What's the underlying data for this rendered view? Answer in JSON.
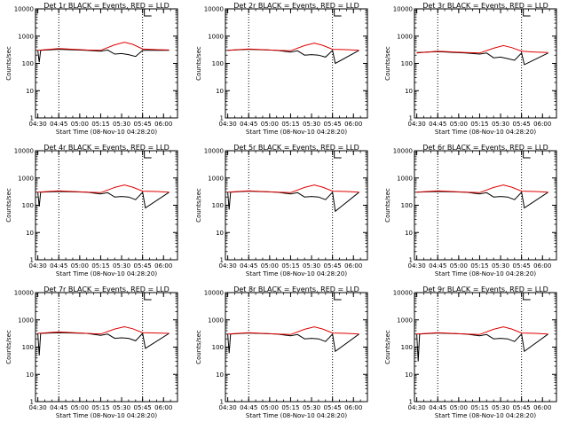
{
  "chart_data": [
    {
      "type": "line",
      "title": "Det 1r BLACK = Events, RED = LLD",
      "xlabel": "Start Time (08-Nov-10 04:28:20)",
      "ylabel": "Counts/sec",
      "ylim": [
        1,
        10000
      ],
      "y_scale": "log",
      "x_tick_labels": [
        "04:30",
        "04:45",
        "05:00",
        "05:15",
        "05:30",
        "05:45",
        "06:00"
      ],
      "y_tick_labels": [
        "1",
        "10",
        "100",
        "1000",
        "10000"
      ],
      "vertical_dotted_lines": [
        "04:45",
        "05:45"
      ],
      "series": [
        {
          "color": "#000000",
          "x": [
            "04:30",
            "04:31",
            "04:32",
            "04:45",
            "05:05",
            "05:15",
            "05:20",
            "05:25",
            "05:30",
            "05:35",
            "05:40",
            "05:45",
            "05:46",
            "06:04"
          ],
          "values": [
            300,
            110,
            300,
            330,
            300,
            280,
            310,
            220,
            230,
            210,
            180,
            300,
            300,
            300
          ]
        },
        {
          "color": "#e00000",
          "x": [
            "04:30",
            "04:45",
            "05:05",
            "05:15",
            "05:25",
            "05:32",
            "05:38",
            "05:45",
            "05:55",
            "06:04"
          ],
          "values": [
            300,
            350,
            310,
            300,
            480,
            600,
            500,
            340,
            320,
            310
          ]
        }
      ]
    },
    {
      "type": "line",
      "title": "Det 2r BLACK = Events, RED = LLD",
      "xlabel": "Start Time (08-Nov-10 04:28:20)",
      "ylabel": "Counts/sec",
      "ylim": [
        1,
        10000
      ],
      "y_scale": "log",
      "x_tick_labels": [
        "04:30",
        "04:45",
        "05:00",
        "05:15",
        "05:30",
        "05:45",
        "06:00"
      ],
      "y_tick_labels": [
        "1",
        "10",
        "100",
        "1000",
        "10000"
      ],
      "vertical_dotted_lines": [
        "04:45",
        "05:45"
      ],
      "series": [
        {
          "color": "#000000",
          "x": [
            "04:30",
            "04:45",
            "05:05",
            "05:15",
            "05:20",
            "05:25",
            "05:30",
            "05:35",
            "05:40",
            "05:45",
            "05:47",
            "06:04"
          ],
          "values": [
            300,
            330,
            300,
            260,
            290,
            200,
            210,
            200,
            170,
            300,
            100,
            300
          ]
        },
        {
          "color": "#e00000",
          "x": [
            "04:30",
            "04:45",
            "05:05",
            "05:15",
            "05:25",
            "05:32",
            "05:38",
            "05:45",
            "05:55",
            "06:04"
          ],
          "values": [
            300,
            340,
            300,
            290,
            450,
            550,
            460,
            330,
            320,
            300
          ]
        }
      ]
    },
    {
      "type": "line",
      "title": "Det 3r BLACK = Events, RED = LLD",
      "xlabel": "Start Time (08-Nov-10 04:28:20)",
      "ylabel": "Counts/sec",
      "ylim": [
        1,
        10000
      ],
      "y_scale": "log",
      "x_tick_labels": [
        "04:30",
        "04:45",
        "05:00",
        "05:15",
        "05:30",
        "05:45",
        "06:00"
      ],
      "y_tick_labels": [
        "1",
        "10",
        "100",
        "1000",
        "10000"
      ],
      "vertical_dotted_lines": [
        "04:45",
        "05:45"
      ],
      "series": [
        {
          "color": "#000000",
          "x": [
            "04:30",
            "04:45",
            "05:05",
            "05:15",
            "05:20",
            "05:25",
            "05:30",
            "05:35",
            "05:40",
            "05:45",
            "05:47",
            "06:04"
          ],
          "values": [
            250,
            270,
            240,
            220,
            240,
            160,
            170,
            150,
            130,
            240,
            90,
            240
          ]
        },
        {
          "color": "#e00000",
          "x": [
            "04:30",
            "04:45",
            "05:05",
            "05:15",
            "05:25",
            "05:32",
            "05:38",
            "05:45",
            "05:55",
            "06:04"
          ],
          "values": [
            240,
            280,
            250,
            240,
            360,
            450,
            380,
            280,
            260,
            250
          ]
        }
      ]
    },
    {
      "type": "line",
      "title": "Det 4r BLACK = Events, RED = LLD",
      "xlabel": "Start Time (08-Nov-10 04:28:20)",
      "ylabel": "Counts/sec",
      "ylim": [
        1,
        10000
      ],
      "y_scale": "log",
      "x_tick_labels": [
        "04:30",
        "04:45",
        "05:00",
        "05:15",
        "05:30",
        "05:45",
        "06:00"
      ],
      "y_tick_labels": [
        "1",
        "10",
        "100",
        "1000",
        "10000"
      ],
      "vertical_dotted_lines": [
        "04:45",
        "05:45"
      ],
      "series": [
        {
          "color": "#000000",
          "x": [
            "04:30",
            "04:31",
            "04:32",
            "04:45",
            "05:05",
            "05:15",
            "05:20",
            "05:25",
            "05:30",
            "05:35",
            "05:40",
            "05:45",
            "05:47",
            "06:04"
          ],
          "values": [
            300,
            90,
            300,
            320,
            300,
            260,
            290,
            200,
            210,
            200,
            160,
            300,
            80,
            300
          ]
        },
        {
          "color": "#e00000",
          "x": [
            "04:30",
            "04:45",
            "05:05",
            "05:15",
            "05:25",
            "05:32",
            "05:38",
            "05:45",
            "05:55",
            "06:04"
          ],
          "values": [
            300,
            340,
            300,
            290,
            450,
            550,
            460,
            330,
            320,
            300
          ]
        }
      ]
    },
    {
      "type": "line",
      "title": "Det 5r BLACK = Events, RED = LLD",
      "xlabel": "Start Time (08-Nov-10 04:28:20)",
      "ylabel": "Counts/sec",
      "ylim": [
        1,
        10000
      ],
      "y_scale": "log",
      "x_tick_labels": [
        "04:30",
        "04:45",
        "05:00",
        "05:15",
        "05:30",
        "05:45",
        "06:00"
      ],
      "y_tick_labels": [
        "1",
        "10",
        "100",
        "1000",
        "10000"
      ],
      "vertical_dotted_lines": [
        "04:45",
        "05:45"
      ],
      "series": [
        {
          "color": "#000000",
          "x": [
            "04:30",
            "04:31",
            "04:32",
            "04:45",
            "05:05",
            "05:15",
            "05:20",
            "05:25",
            "05:30",
            "05:35",
            "05:40",
            "05:45",
            "05:47",
            "06:04"
          ],
          "values": [
            300,
            70,
            300,
            330,
            300,
            260,
            290,
            200,
            210,
            200,
            160,
            300,
            60,
            300
          ]
        },
        {
          "color": "#e00000",
          "x": [
            "04:30",
            "04:45",
            "05:05",
            "05:15",
            "05:25",
            "05:32",
            "05:38",
            "05:45",
            "05:55",
            "06:04"
          ],
          "values": [
            300,
            340,
            300,
            290,
            450,
            550,
            460,
            330,
            320,
            300
          ]
        }
      ]
    },
    {
      "type": "line",
      "title": "Det 6r BLACK = Events, RED = LLD",
      "xlabel": "Start Time (08-Nov-10 04:28:20)",
      "ylabel": "Counts/sec",
      "ylim": [
        1,
        10000
      ],
      "y_scale": "log",
      "x_tick_labels": [
        "04:30",
        "04:45",
        "05:00",
        "05:15",
        "05:30",
        "05:45",
        "06:00"
      ],
      "y_tick_labels": [
        "1",
        "10",
        "100",
        "1000",
        "10000"
      ],
      "vertical_dotted_lines": [
        "04:45",
        "05:45"
      ],
      "series": [
        {
          "color": "#000000",
          "x": [
            "04:30",
            "04:45",
            "05:05",
            "05:15",
            "05:20",
            "05:25",
            "05:30",
            "05:35",
            "05:40",
            "05:45",
            "05:47",
            "06:04"
          ],
          "values": [
            300,
            320,
            300,
            260,
            290,
            200,
            210,
            200,
            160,
            300,
            80,
            300
          ]
        },
        {
          "color": "#e00000",
          "x": [
            "04:30",
            "04:45",
            "05:05",
            "05:15",
            "05:25",
            "05:32",
            "05:38",
            "05:45",
            "05:55",
            "06:04"
          ],
          "values": [
            300,
            340,
            300,
            290,
            450,
            550,
            460,
            330,
            320,
            300
          ]
        }
      ]
    },
    {
      "type": "line",
      "title": "Det 7r BLACK = Events, RED = LLD",
      "xlabel": "Start Time (08-Nov-10 04:28:20)",
      "ylabel": "Counts/sec",
      "ylim": [
        1,
        10000
      ],
      "y_scale": "log",
      "x_tick_labels": [
        "04:30",
        "04:45",
        "05:00",
        "05:15",
        "05:30",
        "05:45",
        "06:00"
      ],
      "y_tick_labels": [
        "1",
        "10",
        "100",
        "1000",
        "10000"
      ],
      "vertical_dotted_lines": [
        "04:45",
        "05:45"
      ],
      "series": [
        {
          "color": "#000000",
          "x": [
            "04:30",
            "04:31",
            "04:32",
            "04:45",
            "05:05",
            "05:15",
            "05:20",
            "05:25",
            "05:30",
            "05:35",
            "05:40",
            "05:45",
            "05:47",
            "06:04"
          ],
          "values": [
            320,
            50,
            320,
            340,
            320,
            270,
            300,
            210,
            220,
            210,
            170,
            320,
            90,
            320
          ]
        },
        {
          "color": "#e00000",
          "x": [
            "04:30",
            "04:45",
            "05:05",
            "05:15",
            "05:25",
            "05:32",
            "05:38",
            "05:45",
            "05:55",
            "06:04"
          ],
          "values": [
            320,
            360,
            320,
            300,
            460,
            560,
            470,
            340,
            330,
            320
          ]
        }
      ]
    },
    {
      "type": "line",
      "title": "Det 8r BLACK = Events, RED = LLD",
      "xlabel": "Start Time (08-Nov-10 04:28:20)",
      "ylabel": "Counts/sec",
      "ylim": [
        1,
        10000
      ],
      "y_scale": "log",
      "x_tick_labels": [
        "04:30",
        "04:45",
        "05:00",
        "05:15",
        "05:30",
        "05:45",
        "06:00"
      ],
      "y_tick_labels": [
        "1",
        "10",
        "100",
        "1000",
        "10000"
      ],
      "vertical_dotted_lines": [
        "04:45",
        "05:45"
      ],
      "series": [
        {
          "color": "#000000",
          "x": [
            "04:30",
            "04:31",
            "04:32",
            "04:45",
            "05:05",
            "05:15",
            "05:20",
            "05:25",
            "05:30",
            "05:35",
            "05:40",
            "05:45",
            "05:47",
            "06:04"
          ],
          "values": [
            300,
            60,
            300,
            330,
            300,
            260,
            290,
            200,
            210,
            200,
            160,
            300,
            70,
            300
          ]
        },
        {
          "color": "#e00000",
          "x": [
            "04:30",
            "04:45",
            "05:05",
            "05:15",
            "05:25",
            "05:32",
            "05:38",
            "05:45",
            "05:55",
            "06:04"
          ],
          "values": [
            300,
            340,
            300,
            290,
            450,
            550,
            460,
            330,
            320,
            300
          ]
        }
      ]
    },
    {
      "type": "line",
      "title": "Det 9r BLACK = Events, RED = LLD",
      "xlabel": "Start Time (08-Nov-10 04:28:20)",
      "ylabel": "Counts/sec",
      "ylim": [
        1,
        10000
      ],
      "y_scale": "log",
      "x_tick_labels": [
        "04:30",
        "04:45",
        "05:00",
        "05:15",
        "05:30",
        "05:45",
        "06:00"
      ],
      "y_tick_labels": [
        "1",
        "10",
        "100",
        "1000",
        "10000"
      ],
      "vertical_dotted_lines": [
        "04:45",
        "05:45"
      ],
      "series": [
        {
          "color": "#000000",
          "x": [
            "04:30",
            "04:31",
            "04:32",
            "04:45",
            "05:05",
            "05:15",
            "05:20",
            "05:25",
            "05:30",
            "05:35",
            "05:40",
            "05:45",
            "05:47",
            "06:04"
          ],
          "values": [
            300,
            30,
            300,
            330,
            300,
            260,
            290,
            200,
            210,
            200,
            160,
            300,
            70,
            300
          ]
        },
        {
          "color": "#e00000",
          "x": [
            "04:30",
            "04:45",
            "05:05",
            "05:15",
            "05:25",
            "05:32",
            "05:38",
            "05:45",
            "05:55",
            "06:04"
          ],
          "values": [
            300,
            340,
            300,
            290,
            450,
            550,
            460,
            330,
            320,
            300
          ]
        }
      ]
    }
  ]
}
